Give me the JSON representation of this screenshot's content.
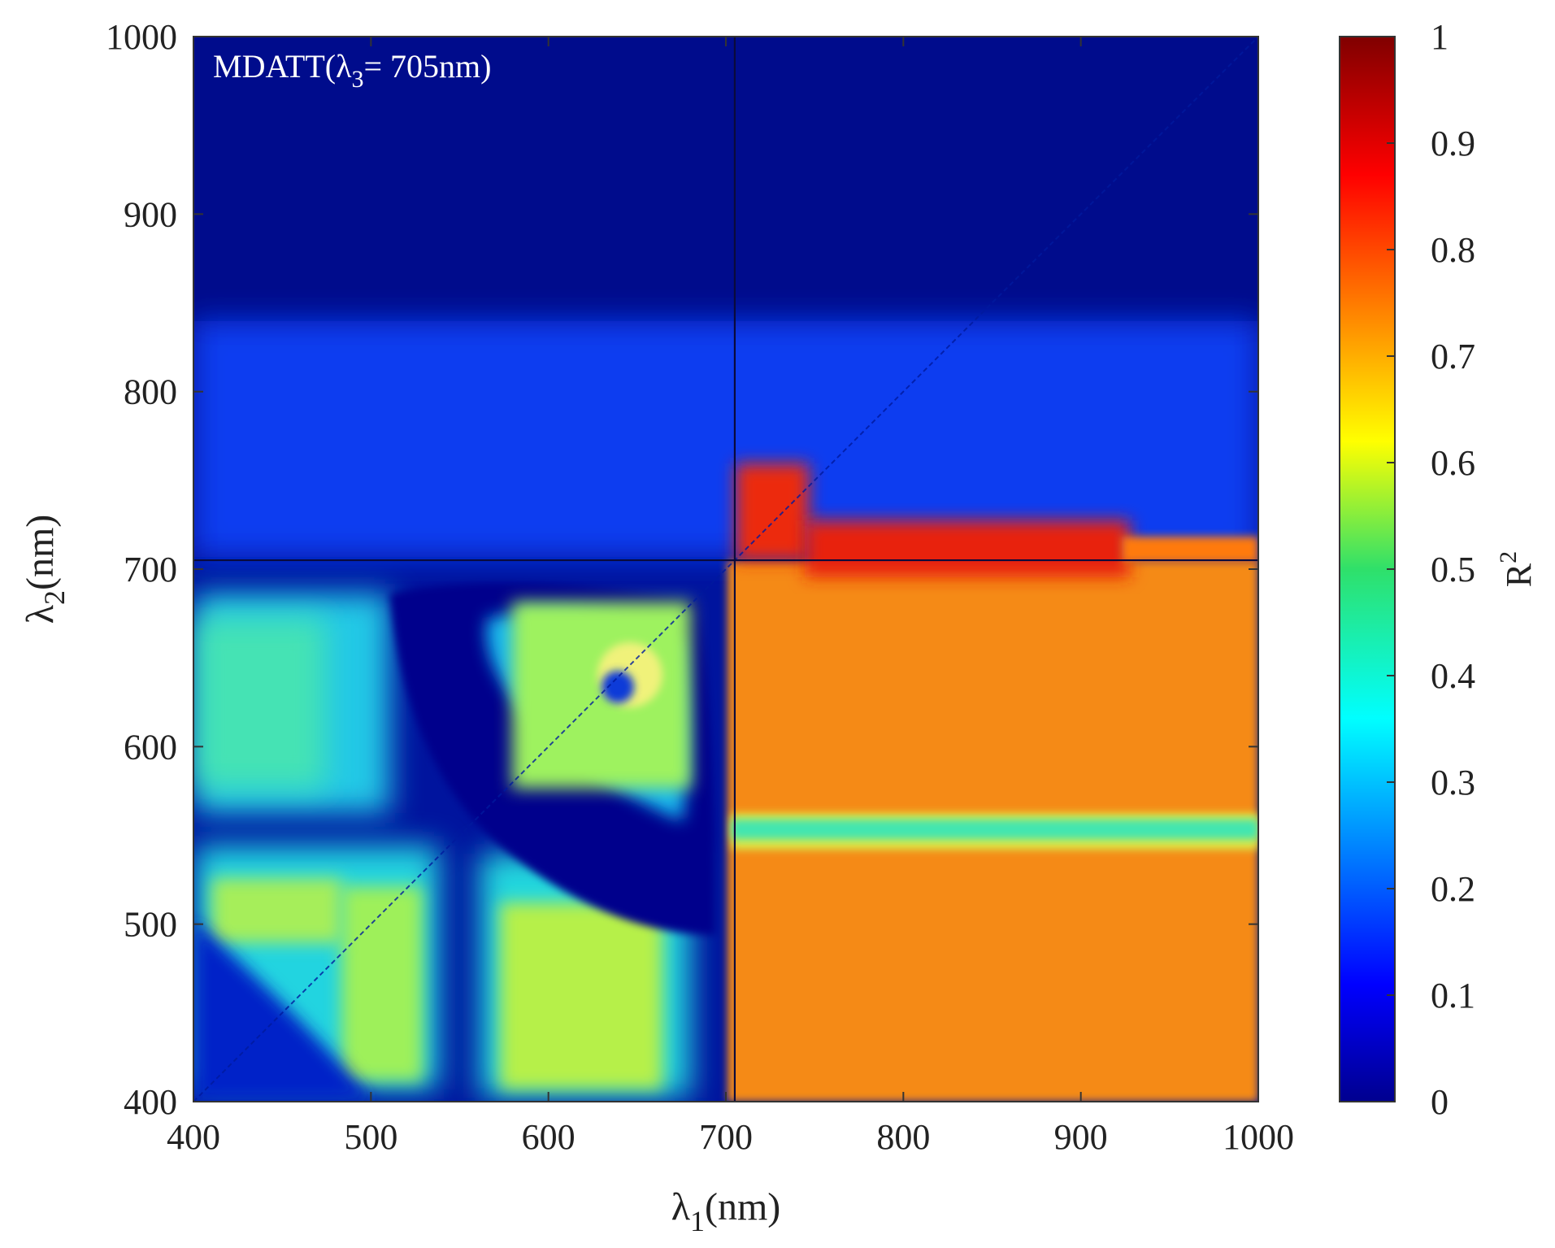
{
  "chart_data": {
    "type": "heatmap",
    "title": "",
    "annotation": {
      "prefix": "MDATT(λ",
      "subscript": "3",
      "suffix": "= 705nm)"
    },
    "xlabel": {
      "symbol": "λ",
      "subscript": "1",
      "unit": "(nm)"
    },
    "ylabel": {
      "symbol": "λ",
      "subscript": "2",
      "unit": "(nm)"
    },
    "xlim": [
      400,
      1000
    ],
    "ylim": [
      400,
      1000
    ],
    "x_ticks": [
      "400",
      "500",
      "600",
      "700",
      "800",
      "900",
      "1000"
    ],
    "y_ticks": [
      "400",
      "500",
      "600",
      "700",
      "800",
      "900",
      "1000"
    ],
    "crosshair": {
      "x": 705,
      "y": 705
    },
    "colorbar": {
      "label": {
        "base": "R",
        "superscript": "2"
      },
      "range": [
        0,
        1
      ],
      "ticks": [
        "0",
        "0.1",
        "0.2",
        "0.3",
        "0.4",
        "0.5",
        "0.6",
        "0.7",
        "0.8",
        "0.9",
        "1"
      ],
      "colormap": "jet"
    },
    "regions_r2": [
      {
        "x_range": [
          705,
          1000
        ],
        "y_range": [
          400,
          700
        ],
        "approx_r2": 0.75
      },
      {
        "x_range": [
          705,
          760
        ],
        "y_range": [
          700,
          760
        ],
        "approx_r2": 0.9
      },
      {
        "x_range": [
          760,
          950
        ],
        "y_range": [
          700,
          715
        ],
        "approx_r2": 0.85
      },
      {
        "x_range": [
          705,
          1000
        ],
        "y_range": [
          555,
          570
        ],
        "approx_r2": 0.45
      },
      {
        "x_range": [
          415,
          525
        ],
        "y_range": [
          410,
          520
        ],
        "approx_r2": 0.55
      },
      {
        "x_range": [
          560,
          660
        ],
        "y_range": [
          420,
          500
        ],
        "approx_r2": 0.6
      },
      {
        "x_range": [
          580,
          690
        ],
        "y_range": [
          590,
          690
        ],
        "approx_r2": 0.55
      },
      {
        "x_range": [
          400,
          520
        ],
        "y_range": [
          560,
          700
        ],
        "approx_r2": 0.3
      },
      {
        "x_range": [
          400,
          1000
        ],
        "y_range": [
          760,
          1000
        ],
        "approx_r2": 0.05
      }
    ]
  }
}
